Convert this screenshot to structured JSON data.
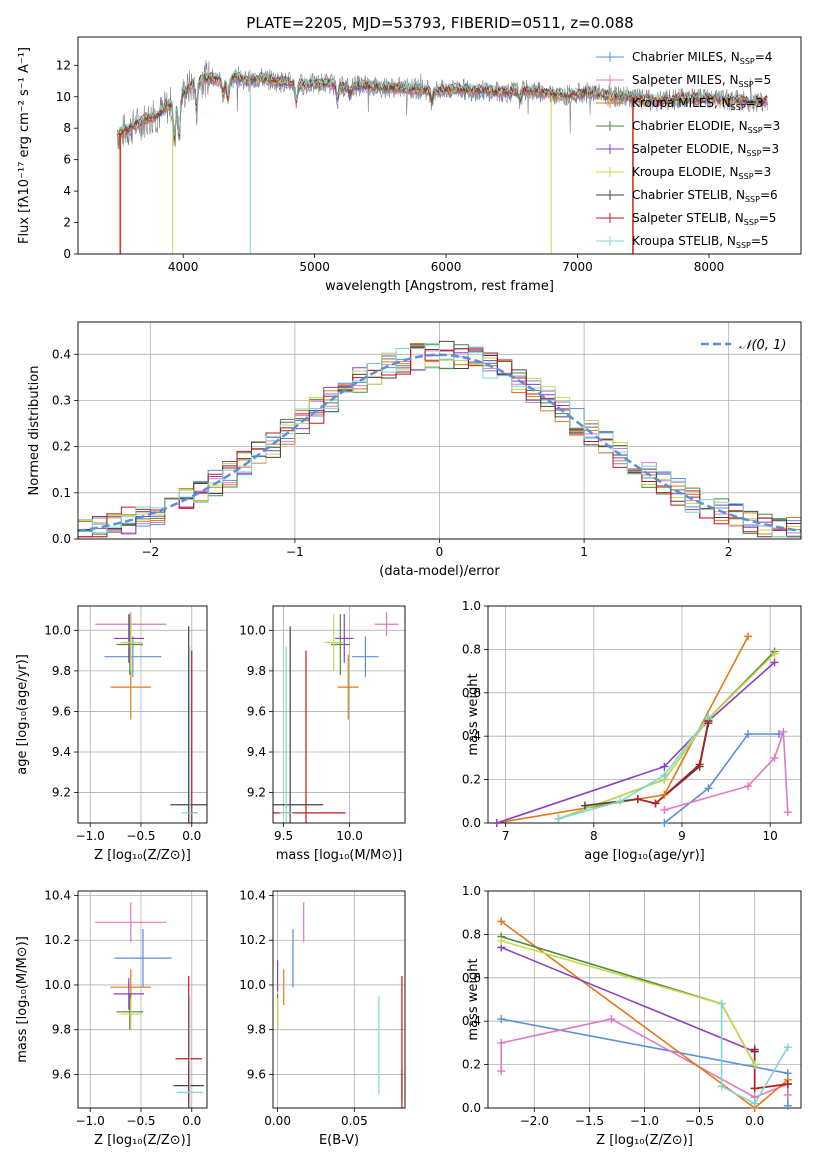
{
  "figure_title": "PLATE=2205, MJD=53793, FIBERID=0511, z=0.088",
  "colors": {
    "Chabrier MILES": "#5b8fd9",
    "Salpeter MILES": "#e377c2",
    "Kroupa MILES": "#e07b1a",
    "Chabrier ELODIE": "#4a8a3a",
    "Salpeter ELODIE": "#8e3fbf",
    "Kroupa ELODIE": "#c8d84e",
    "Chabrier STELIB": "#444444",
    "Salpeter STELIB": "#c0181d",
    "Kroupa STELIB": "#7fd8cf"
  },
  "chart_data": [
    {
      "id": "spectrum",
      "type": "line",
      "xlabel": "wavelength [Angstrom, rest frame]",
      "ylabel": "Flux [fλ10⁻¹⁷ erg cm⁻² s⁻¹ A⁻¹]",
      "xlim": [
        3200,
        8700
      ],
      "ylim": [
        0,
        13.8
      ],
      "xticks": [
        4000,
        5000,
        6000,
        7000,
        8000
      ],
      "yticks": [
        0,
        2,
        4,
        6,
        8,
        10,
        12
      ],
      "grid": false,
      "legend_position": "top-right",
      "legend": [
        {
          "model": "Chabrier MILES",
          "label": "Chabrier MILES, N",
          "sub": "SSP",
          "n": "=4"
        },
        {
          "model": "Salpeter MILES",
          "label": "Salpeter MILES, N",
          "sub": "SSP",
          "n": "=5"
        },
        {
          "model": "Kroupa MILES",
          "label": "Kroupa MILES, N",
          "sub": "SSP",
          "n": "=3"
        },
        {
          "model": "Chabrier ELODIE",
          "label": "Chabrier ELODIE, N",
          "sub": "SSP",
          "n": "=3"
        },
        {
          "model": "Salpeter ELODIE",
          "label": "Salpeter ELODIE, N",
          "sub": "SSP",
          "n": "=3"
        },
        {
          "model": "Kroupa ELODIE",
          "label": "Kroupa ELODIE, N",
          "sub": "SSP",
          "n": "=3"
        },
        {
          "model": "Chabrier STELIB",
          "label": "Chabrier STELIB, N",
          "sub": "SSP",
          "n": "=6"
        },
        {
          "model": "Salpeter STELIB",
          "label": "Salpeter STELIB, N",
          "sub": "SSP",
          "n": "=5"
        },
        {
          "model": "Kroupa STELIB",
          "label": "Kroupa STELIB, N",
          "sub": "SSP",
          "n": "=5"
        }
      ],
      "continuum": [
        [
          3500,
          7.6
        ],
        [
          3600,
          8.0
        ],
        [
          3700,
          8.5
        ],
        [
          3800,
          8.8
        ],
        [
          3900,
          9.5
        ],
        [
          4000,
          10.2
        ],
        [
          4100,
          11.0
        ],
        [
          4200,
          11.2
        ],
        [
          4300,
          11.0
        ],
        [
          4400,
          11.3
        ],
        [
          4500,
          11.0
        ],
        [
          4600,
          11.2
        ],
        [
          4700,
          11.0
        ],
        [
          4800,
          10.9
        ],
        [
          4900,
          10.8
        ],
        [
          5000,
          10.8
        ],
        [
          5100,
          10.9
        ],
        [
          5200,
          10.6
        ],
        [
          5300,
          10.7
        ],
        [
          5400,
          10.7
        ],
        [
          5500,
          10.6
        ],
        [
          5600,
          10.6
        ],
        [
          5700,
          10.5
        ],
        [
          5800,
          10.5
        ],
        [
          5900,
          10.4
        ],
        [
          6000,
          10.4
        ],
        [
          6100,
          10.5
        ],
        [
          6200,
          10.4
        ],
        [
          6300,
          10.4
        ],
        [
          6400,
          10.3
        ],
        [
          6500,
          10.3
        ],
        [
          6600,
          10.4
        ],
        [
          6700,
          10.3
        ],
        [
          6800,
          10.2
        ],
        [
          6900,
          10.1
        ],
        [
          7000,
          10.2
        ],
        [
          7100,
          10.3
        ],
        [
          7200,
          10.1
        ],
        [
          7300,
          10.0
        ],
        [
          7400,
          10.0
        ],
        [
          7500,
          9.8
        ],
        [
          7600,
          9.7
        ],
        [
          7700,
          9.8
        ],
        [
          7800,
          9.9
        ],
        [
          7900,
          9.9
        ],
        [
          8000,
          9.9
        ],
        [
          8100,
          9.8
        ],
        [
          8200,
          9.8
        ],
        [
          8300,
          9.7
        ],
        [
          8400,
          9.7
        ],
        [
          8450,
          9.7
        ]
      ],
      "absorption_features": [
        [
          3934,
          7.2
        ],
        [
          3969,
          7.4
        ],
        [
          4102,
          9.2
        ],
        [
          4304,
          10.2
        ],
        [
          4340,
          9.8
        ],
        [
          4861,
          9.7
        ],
        [
          5175,
          9.9
        ],
        [
          5270,
          10.1
        ],
        [
          5890,
          9.8
        ],
        [
          6563,
          9.8
        ]
      ],
      "edge_drops": [
        {
          "model": "Salpeter STELIB",
          "x": 3520
        },
        {
          "model": "Kroupa MILES",
          "x": 3525
        },
        {
          "model": "Kroupa ELODIE",
          "x": 3920
        },
        {
          "model": "Kroupa ELODIE",
          "x": 6800
        },
        {
          "model": "Kroupa STELIB",
          "x": 4510
        },
        {
          "model": "Salpeter STELIB",
          "x": 7420
        },
        {
          "model": "Kroupa MILES",
          "x": 7425
        }
      ]
    },
    {
      "id": "residuals",
      "type": "step-histogram",
      "xlabel": "(data-model)/error",
      "ylabel": "Normed distribution",
      "xlim": [
        -2.5,
        2.5
      ],
      "ylim": [
        0,
        0.47
      ],
      "xticks": [
        -2,
        -1,
        0,
        1,
        2
      ],
      "yticks": [
        0.0,
        0.1,
        0.2,
        0.3,
        0.4
      ],
      "grid": true,
      "legend_position": "top-right",
      "gaussian": {
        "label": "𝒩(0, 1)",
        "color": "#5b8fd9",
        "mean": 0,
        "sigma": 1
      },
      "bin_edges_from": -2.5,
      "bin_width": 0.1
    },
    {
      "id": "age-Z",
      "type": "errorbar",
      "xlabel": "Z [log₁₀(Z/Z⊙)]",
      "ylabel": "age  [log₁₀(age/yr)]",
      "xlim": [
        -1.12,
        0.15
      ],
      "ylim": [
        9.05,
        10.12
      ],
      "xticks": [
        -1.0,
        -0.5,
        0.0
      ],
      "yticks": [
        9.2,
        9.4,
        9.6,
        9.8,
        10.0
      ],
      "grid": true,
      "points": [
        {
          "model": "Chabrier MILES",
          "x": -0.58,
          "xerr": 0.28,
          "y": 9.87,
          "yerr": 0.1
        },
        {
          "model": "Salpeter MILES",
          "x": -0.6,
          "xerr": 0.35,
          "y": 10.03,
          "yerr": 0.06
        },
        {
          "model": "Kroupa MILES",
          "x": -0.6,
          "xerr": 0.2,
          "y": 9.72,
          "yerr": 0.16
        },
        {
          "model": "Chabrier ELODIE",
          "x": -0.61,
          "xerr": 0.13,
          "y": 9.93,
          "yerr": 0.15
        },
        {
          "model": "Salpeter ELODIE",
          "x": -0.62,
          "xerr": 0.15,
          "y": 9.96,
          "yerr": 0.12
        },
        {
          "model": "Kroupa ELODIE",
          "x": -0.6,
          "xerr": 0.1,
          "y": 9.94,
          "yerr": 0.14
        },
        {
          "model": "Chabrier STELIB",
          "x": -0.03,
          "xerr": 0.18,
          "y": 9.14,
          "yerr": 0.88
        },
        {
          "model": "Salpeter STELIB",
          "x": 0.0,
          "xerr": 0.05,
          "y": 9.1,
          "yerr": 0.8
        },
        {
          "model": "Kroupa STELIB",
          "x": -0.02,
          "xerr": 0.08,
          "y": 9.1,
          "yerr": 0.82
        }
      ]
    },
    {
      "id": "age-mass",
      "type": "errorbar",
      "xlabel": "mass [log₁₀(M/M⊙)]",
      "ylabel": "",
      "xlim": [
        9.42,
        10.42
      ],
      "ylim": [
        9.05,
        10.12
      ],
      "xticks": [
        9.5,
        10.0
      ],
      "yticks": [
        9.2,
        9.4,
        9.6,
        9.8,
        10.0
      ],
      "grid": true,
      "points": [
        {
          "model": "Chabrier MILES",
          "x": 10.12,
          "xerr": 0.1,
          "y": 9.87,
          "yerr": 0.1
        },
        {
          "model": "Salpeter MILES",
          "x": 10.28,
          "xerr": 0.09,
          "y": 10.03,
          "yerr": 0.06
        },
        {
          "model": "Kroupa MILES",
          "x": 9.99,
          "xerr": 0.08,
          "y": 9.72,
          "yerr": 0.16
        },
        {
          "model": "Chabrier ELODIE",
          "x": 9.93,
          "xerr": 0.07,
          "y": 9.93,
          "yerr": 0.15
        },
        {
          "model": "Salpeter ELODIE",
          "x": 9.96,
          "xerr": 0.07,
          "y": 9.96,
          "yerr": 0.12
        },
        {
          "model": "Kroupa ELODIE",
          "x": 9.88,
          "xerr": 0.07,
          "y": 9.94,
          "yerr": 0.14
        },
        {
          "model": "Chabrier STELIB",
          "x": 9.55,
          "xerr": 0.25,
          "y": 9.14,
          "yerr": 0.88
        },
        {
          "model": "Salpeter STELIB",
          "x": 9.67,
          "xerr": 0.3,
          "y": 9.1,
          "yerr": 0.8
        },
        {
          "model": "Kroupa STELIB",
          "x": 9.52,
          "xerr": 0.05,
          "y": 9.1,
          "yerr": 0.82
        }
      ]
    },
    {
      "id": "weight-age",
      "type": "line",
      "xlabel": "age  [log₁₀(age/yr)]",
      "ylabel": "mass weight",
      "xlim": [
        6.8,
        10.35
      ],
      "ylim": [
        0,
        1.0
      ],
      "xticks": [
        7,
        8,
        9,
        10
      ],
      "yticks": [
        0.0,
        0.2,
        0.4,
        0.6,
        0.8,
        1.0
      ],
      "grid": true,
      "series": [
        {
          "model": "Chabrier MILES",
          "x": [
            8.8,
            9.3,
            9.75,
            10.1
          ],
          "y": [
            0.0,
            0.16,
            0.41,
            0.41
          ]
        },
        {
          "model": "Salpeter MILES",
          "x": [
            8.8,
            9.75,
            10.05,
            10.15,
            10.2
          ],
          "y": [
            0.06,
            0.17,
            0.3,
            0.42,
            0.05
          ]
        },
        {
          "model": "Kroupa MILES",
          "x": [
            6.9,
            8.8,
            9.75
          ],
          "y": [
            0.0,
            0.13,
            0.86
          ]
        },
        {
          "model": "Chabrier ELODIE",
          "x": [
            7.6,
            8.8,
            9.3,
            10.05
          ],
          "y": [
            0.02,
            0.2,
            0.48,
            0.79
          ]
        },
        {
          "model": "Salpeter ELODIE",
          "x": [
            6.9,
            8.8,
            9.3,
            10.05
          ],
          "y": [
            0.0,
            0.26,
            0.47,
            0.74
          ]
        },
        {
          "model": "Kroupa ELODIE",
          "x": [
            7.6,
            8.8,
            9.3,
            10.05
          ],
          "y": [
            0.02,
            0.2,
            0.48,
            0.78
          ]
        },
        {
          "model": "Chabrier STELIB",
          "x": [
            7.9,
            8.5,
            8.7,
            9.2,
            9.3
          ],
          "y": [
            0.08,
            0.11,
            0.09,
            0.26,
            0.46
          ]
        },
        {
          "model": "Salpeter STELIB",
          "x": [
            8.5,
            8.7,
            9.2,
            9.3
          ],
          "y": [
            0.11,
            0.09,
            0.27,
            0.47
          ]
        },
        {
          "model": "Kroupa STELIB",
          "x": [
            7.6,
            8.3,
            8.8,
            9.3
          ],
          "y": [
            0.02,
            0.1,
            0.22,
            0.49
          ]
        }
      ]
    },
    {
      "id": "mass-Z",
      "type": "errorbar",
      "xlabel": "Z [log₁₀(Z/Z⊙)]",
      "ylabel": "mass [log₁₀(M/M⊙)]",
      "xlim": [
        -1.12,
        0.15
      ],
      "ylim": [
        9.45,
        10.42
      ],
      "xticks": [
        -1.0,
        -0.5,
        0.0
      ],
      "yticks": [
        9.6,
        9.8,
        10.0,
        10.2,
        10.4
      ],
      "grid": true,
      "points": [
        {
          "model": "Chabrier MILES",
          "x": -0.48,
          "xerr": 0.28,
          "y": 10.12,
          "yerr": 0.13
        },
        {
          "model": "Salpeter MILES",
          "x": -0.6,
          "xerr": 0.35,
          "y": 10.28,
          "yerr": 0.09
        },
        {
          "model": "Kroupa MILES",
          "x": -0.6,
          "xerr": 0.2,
          "y": 9.99,
          "yerr": 0.08
        },
        {
          "model": "Chabrier ELODIE",
          "x": -0.61,
          "xerr": 0.13,
          "y": 9.88,
          "yerr": 0.08
        },
        {
          "model": "Salpeter ELODIE",
          "x": -0.62,
          "xerr": 0.15,
          "y": 9.96,
          "yerr": 0.07
        },
        {
          "model": "Kroupa ELODIE",
          "x": -0.6,
          "xerr": 0.1,
          "y": 9.87,
          "yerr": 0.07
        },
        {
          "model": "Chabrier STELIB",
          "x": -0.03,
          "xerr": 0.15,
          "y": 9.55,
          "yerr": 0.07
        },
        {
          "model": "Salpeter STELIB",
          "x": -0.03,
          "xerr": 0.13,
          "y": 9.67,
          "yerr": 0.37
        },
        {
          "model": "Kroupa STELIB",
          "x": -0.02,
          "xerr": 0.13,
          "y": 9.52,
          "yerr": 0.43
        }
      ]
    },
    {
      "id": "mass-EBV",
      "type": "errorbar",
      "xlabel": "E(B-V)",
      "ylabel": "",
      "xlim": [
        -0.003,
        0.083
      ],
      "ylim": [
        9.45,
        10.42
      ],
      "xticks": [
        0.0,
        0.05
      ],
      "yticks": [
        9.6,
        9.8,
        10.0,
        10.2,
        10.4
      ],
      "grid": true,
      "points": [
        {
          "model": "Chabrier MILES",
          "x": 0.01,
          "y": 10.12,
          "yerr": 0.13
        },
        {
          "model": "Salpeter MILES",
          "x": 0.017,
          "y": 10.28,
          "yerr": 0.09
        },
        {
          "model": "Kroupa MILES",
          "x": 0.004,
          "y": 9.99,
          "yerr": 0.08
        },
        {
          "model": "Chabrier ELODIE",
          "x": 0.0,
          "y": 9.88,
          "yerr": 0.08
        },
        {
          "model": "Salpeter ELODIE",
          "x": 0.0,
          "y": 10.04,
          "yerr": 0.07
        },
        {
          "model": "Kroupa ELODIE",
          "x": 0.0,
          "y": 9.87,
          "yerr": 0.07
        },
        {
          "model": "Chabrier STELIB",
          "x": 0.081,
          "y": 9.55,
          "yerr": 0.07
        },
        {
          "model": "Salpeter STELIB",
          "x": 0.081,
          "y": 9.67,
          "yerr": 0.37
        },
        {
          "model": "Kroupa STELIB",
          "x": 0.066,
          "y": 9.73,
          "yerr": 0.22
        }
      ]
    },
    {
      "id": "weight-Z",
      "type": "line",
      "xlabel": "Z [log₁₀(Z/Z⊙)]",
      "ylabel": "mass weight",
      "xlim": [
        -2.42,
        0.42
      ],
      "ylim": [
        0,
        1.0
      ],
      "xticks": [
        -2.0,
        -1.5,
        -1.0,
        -0.5,
        0.0
      ],
      "yticks": [
        0.0,
        0.2,
        0.4,
        0.6,
        0.8,
        1.0
      ],
      "grid": true,
      "series": [
        {
          "model": "Chabrier MILES",
          "x": [
            -2.3,
            0.3,
            0.3
          ],
          "y": [
            0.41,
            0.16,
            0.01
          ]
        },
        {
          "model": "Salpeter MILES",
          "x": [
            -2.3,
            -2.3,
            -1.3,
            0.0,
            0.3,
            0.3
          ],
          "y": [
            0.17,
            0.3,
            0.41,
            0.05,
            0.11,
            0.06
          ]
        },
        {
          "model": "Kroupa MILES",
          "x": [
            -2.3,
            0.0,
            0.3
          ],
          "y": [
            0.86,
            0.0,
            0.13
          ]
        },
        {
          "model": "Chabrier ELODIE",
          "x": [
            -2.3,
            -0.3,
            0.0
          ],
          "y": [
            0.79,
            0.48,
            0.2
          ]
        },
        {
          "model": "Salpeter ELODIE",
          "x": [
            -2.3,
            0.0
          ],
          "y": [
            0.74,
            0.26
          ]
        },
        {
          "model": "Kroupa ELODIE",
          "x": [
            -2.3,
            -0.3,
            0.0
          ],
          "y": [
            0.77,
            0.48,
            0.2
          ]
        },
        {
          "model": "Chabrier STELIB",
          "x": [
            0.0,
            0.0,
            0.3
          ],
          "y": [
            0.26,
            0.09,
            0.11
          ]
        },
        {
          "model": "Salpeter STELIB",
          "x": [
            0.0,
            0.0,
            0.3
          ],
          "y": [
            0.27,
            0.09,
            0.11
          ]
        },
        {
          "model": "Kroupa STELIB",
          "x": [
            -0.3,
            -0.3,
            0.0,
            0.3
          ],
          "y": [
            0.48,
            0.1,
            0.02,
            0.28
          ]
        }
      ]
    }
  ]
}
